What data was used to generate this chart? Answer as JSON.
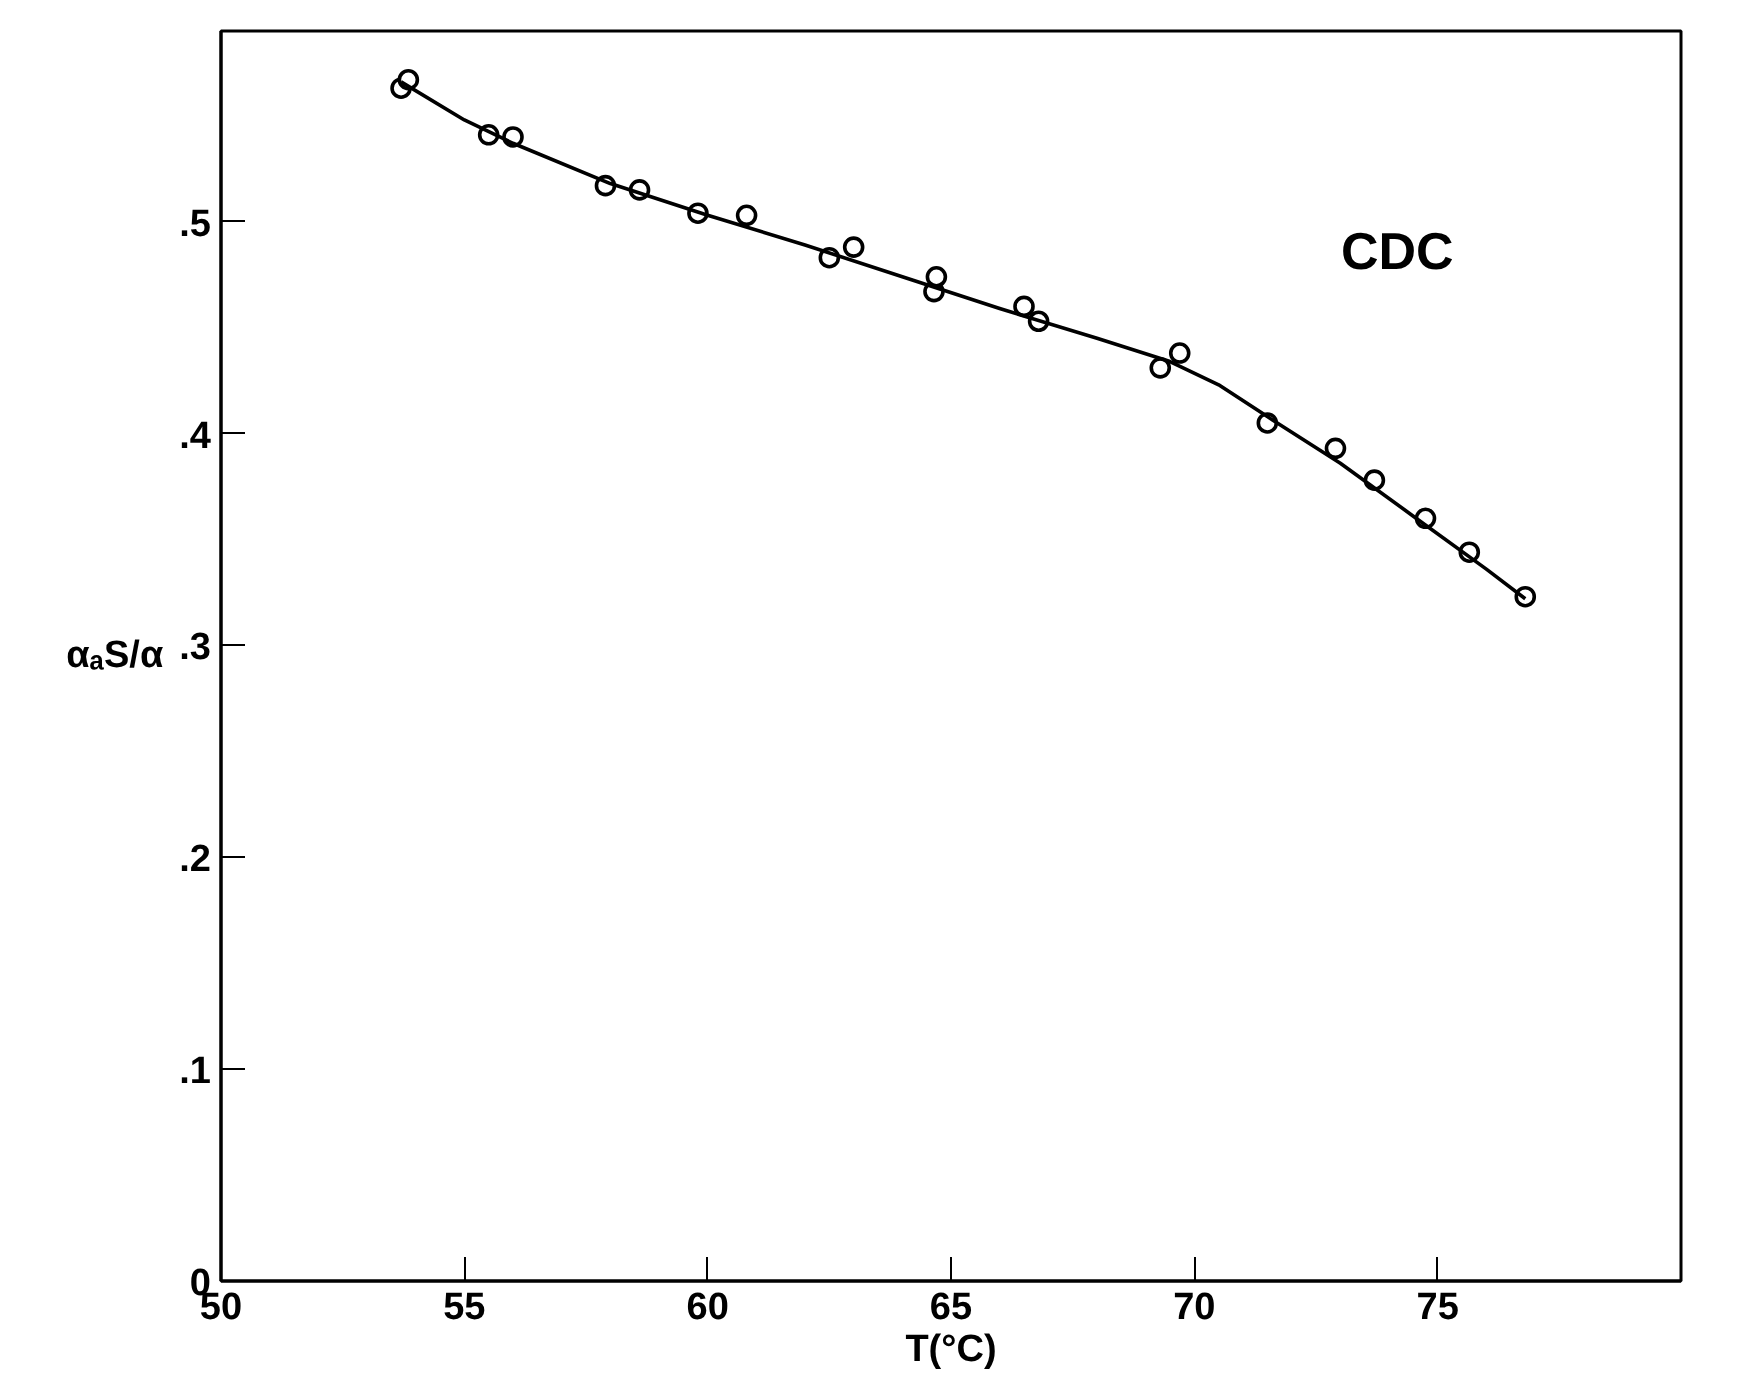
{
  "chart_data": {
    "type": "scatter",
    "xlabel": "T(°C)",
    "ylabel": "αₐS/α",
    "annotations": [
      "CDC"
    ],
    "xlim": [
      50,
      80
    ],
    "ylim": [
      0,
      0.59
    ],
    "xticks": [
      50,
      55,
      60,
      65,
      70,
      75
    ],
    "yticks": [
      0,
      {
        "value": 0.1,
        "label": ".1"
      },
      {
        "value": 0.2,
        "label": ".2"
      },
      {
        "value": 0.3,
        "label": ".3"
      },
      {
        "value": 0.4,
        "label": ".4"
      },
      {
        "value": 0.5,
        "label": ".5"
      }
    ],
    "grid": false,
    "series": [
      {
        "color": "#000000",
        "marker": "circle",
        "x": [
          53.7,
          53.85,
          55.5,
          56.0,
          57.9,
          58.6,
          59.8,
          60.8,
          62.5,
          63.0,
          64.65,
          64.7,
          66.5,
          66.8,
          69.3,
          69.7,
          71.5,
          72.9,
          73.7,
          74.75,
          75.65,
          76.8
        ],
        "values": [
          0.563,
          0.567,
          0.541,
          0.54,
          0.517,
          0.515,
          0.504,
          0.503,
          0.483,
          0.488,
          0.467,
          0.474,
          0.46,
          0.453,
          0.431,
          0.438,
          0.405,
          0.393,
          0.378,
          0.36,
          0.344,
          0.323
        ]
      },
      {
        "type": "line",
        "color": "#000000",
        "line_style": "solid",
        "x": [
          53.7,
          55,
          56,
          58,
          60,
          62,
          64,
          66,
          68,
          69.5,
          70.5,
          71.5,
          73,
          74.5,
          76,
          76.8
        ],
        "values": [
          0.566,
          0.548,
          0.537,
          0.518,
          0.503,
          0.489,
          0.474,
          0.459,
          0.445,
          0.434,
          0.423,
          0.408,
          0.386,
          0.361,
          0.336,
          0.322
        ]
      }
    ]
  }
}
